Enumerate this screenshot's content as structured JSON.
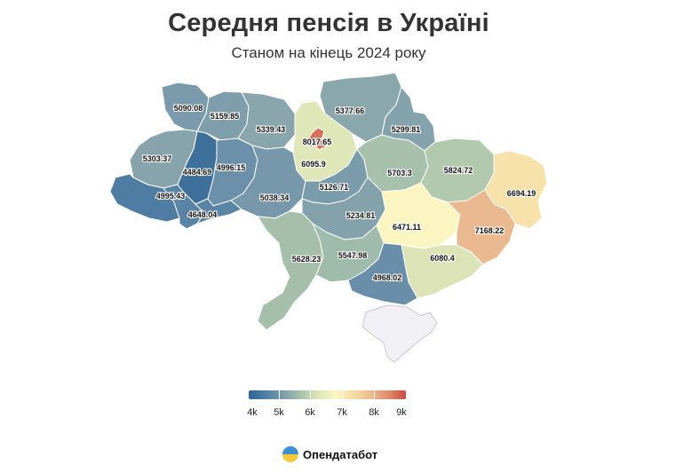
{
  "title": "Середня пенсія в Україні",
  "subtitle": "Станом на кінець 2024 року",
  "brand": "Опендатабот",
  "legend": {
    "ticks": [
      "4k",
      "5k",
      "6k",
      "7k",
      "8k",
      "9k"
    ],
    "scale_min": 4000,
    "scale_max": 9000
  },
  "regions": [
    {
      "name": "Volyn",
      "value": "5090.08"
    },
    {
      "name": "Rivne",
      "value": "5159.85"
    },
    {
      "name": "Zhytomyr",
      "value": "5339.43"
    },
    {
      "name": "Kyiv city",
      "value": "8017.65"
    },
    {
      "name": "Kyiv oblast",
      "value": "6095.9"
    },
    {
      "name": "Chernihiv",
      "value": "5377.66"
    },
    {
      "name": "Sumy",
      "value": "5299.81"
    },
    {
      "name": "Lviv",
      "value": "5303.37"
    },
    {
      "name": "Ternopil",
      "value": "4484.69"
    },
    {
      "name": "Khmelnytskyi",
      "value": "4996.15"
    },
    {
      "name": "Poltava",
      "value": "5703.3"
    },
    {
      "name": "Kharkiv",
      "value": "5824.72"
    },
    {
      "name": "Luhansk",
      "value": "6694.19"
    },
    {
      "name": "Zakarpattia",
      "value": "4995.43"
    },
    {
      "name": "Ivano-Frankivsk",
      "value": "4648.04"
    },
    {
      "name": "Vinnytsia",
      "value": "5038.34"
    },
    {
      "name": "Cherkasy",
      "value": "5126.71"
    },
    {
      "name": "Kirovohrad",
      "value": "5234.81"
    },
    {
      "name": "Dnipropetrovsk",
      "value": "6471.11"
    },
    {
      "name": "Donetsk",
      "value": "7168.22"
    },
    {
      "name": "Odesa",
      "value": "5628.23"
    },
    {
      "name": "Mykolaiv",
      "value": "5547.98"
    },
    {
      "name": "Zaporizhzhia",
      "value": "6080.4"
    },
    {
      "name": "Kherson",
      "value": "4968.02"
    },
    {
      "name": "Chernivtsi",
      "value": ""
    },
    {
      "name": "Crimea",
      "value": ""
    }
  ]
}
